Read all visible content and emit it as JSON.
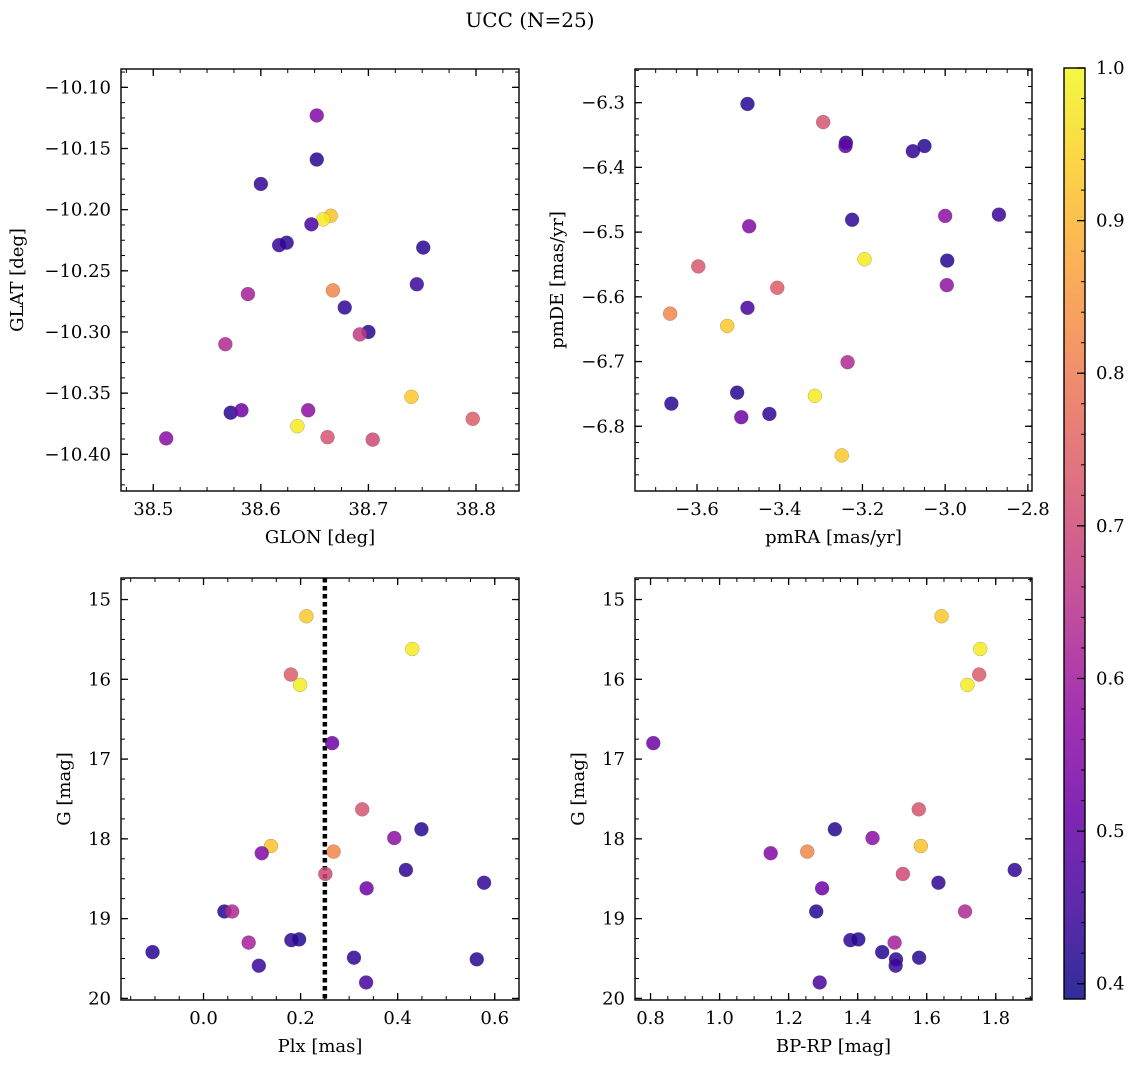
{
  "figure": {
    "suptitle": "UCC (N=25)"
  },
  "colorbar": {
    "colormap": "plasma",
    "vmin": 0.39,
    "vmax": 1.0,
    "ticks": [
      0.4,
      0.5,
      0.6,
      0.7,
      0.8,
      0.9,
      1.0
    ],
    "tick_labels": [
      "0.4",
      "0.5",
      "0.6",
      "0.7",
      "0.8",
      "0.9",
      "1.0"
    ]
  },
  "chart_data": [
    {
      "type": "scatter",
      "xlabel": "GLON [deg]",
      "ylabel": "GLAT [deg]",
      "xlim": [
        38.47,
        38.84
      ],
      "ylim": [
        -10.43,
        -10.085
      ],
      "xticks": [
        38.5,
        38.6,
        38.7,
        38.8
      ],
      "xtick_labels": [
        "38.5",
        "38.6",
        "38.7",
        "38.8"
      ],
      "yticks": [
        -10.1,
        -10.15,
        -10.2,
        -10.25,
        -10.3,
        -10.35,
        -10.4
      ],
      "ytick_labels": [
        "−10.10",
        "−10.15",
        "−10.20",
        "−10.25",
        "−10.30",
        "−10.35",
        "−10.40"
      ],
      "points": [
        {
          "x": 38.652,
          "y": -10.123,
          "c": 0.55
        },
        {
          "x": 38.652,
          "y": -10.159,
          "c": 0.42
        },
        {
          "x": 38.6,
          "y": -10.179,
          "c": 0.43
        },
        {
          "x": 38.665,
          "y": -10.205,
          "c": 0.92
        },
        {
          "x": 38.658,
          "y": -10.208,
          "c": 0.98
        },
        {
          "x": 38.647,
          "y": -10.212,
          "c": 0.46
        },
        {
          "x": 38.617,
          "y": -10.229,
          "c": 0.44
        },
        {
          "x": 38.624,
          "y": -10.227,
          "c": 0.43
        },
        {
          "x": 38.751,
          "y": -10.231,
          "c": 0.42
        },
        {
          "x": 38.745,
          "y": -10.261,
          "c": 0.44
        },
        {
          "x": 38.667,
          "y": -10.266,
          "c": 0.82
        },
        {
          "x": 38.588,
          "y": -10.269,
          "c": 0.61
        },
        {
          "x": 38.678,
          "y": -10.28,
          "c": 0.43
        },
        {
          "x": 38.7,
          "y": -10.3,
          "c": 0.42
        },
        {
          "x": 38.692,
          "y": -10.302,
          "c": 0.67
        },
        {
          "x": 38.567,
          "y": -10.31,
          "c": 0.63
        },
        {
          "x": 38.74,
          "y": -10.353,
          "c": 0.93
        },
        {
          "x": 38.572,
          "y": -10.366,
          "c": 0.42
        },
        {
          "x": 38.582,
          "y": -10.364,
          "c": 0.52
        },
        {
          "x": 38.644,
          "y": -10.364,
          "c": 0.57
        },
        {
          "x": 38.634,
          "y": -10.377,
          "c": 0.98
        },
        {
          "x": 38.662,
          "y": -10.386,
          "c": 0.72
        },
        {
          "x": 38.704,
          "y": -10.388,
          "c": 0.7
        },
        {
          "x": 38.797,
          "y": -10.371,
          "c": 0.74
        },
        {
          "x": 38.512,
          "y": -10.387,
          "c": 0.56
        }
      ]
    },
    {
      "type": "scatter",
      "xlabel": "pmRA [mas/yr]",
      "ylabel": "pmDE [mas/yr]",
      "xlim": [
        -3.75,
        -2.79
      ],
      "ylim": [
        -6.9,
        -6.248
      ],
      "xticks": [
        -3.6,
        -3.4,
        -3.2,
        -3.0,
        -2.8
      ],
      "xtick_labels": [
        "−3.6",
        "−3.4",
        "−3.2",
        "−3.0",
        "−2.8"
      ],
      "yticks": [
        -6.3,
        -6.4,
        -6.5,
        -6.6,
        -6.7,
        -6.8
      ],
      "ytick_labels": [
        "−6.3",
        "−6.4",
        "−6.5",
        "−6.6",
        "−6.7",
        "−6.8"
      ],
      "points": [
        {
          "x": -3.478,
          "y": -6.302,
          "c": 0.42
        },
        {
          "x": -3.295,
          "y": -6.33,
          "c": 0.72
        },
        {
          "x": -3.24,
          "y": -6.362,
          "c": 0.42
        },
        {
          "x": -3.241,
          "y": -6.367,
          "c": 0.5
        },
        {
          "x": -3.078,
          "y": -6.375,
          "c": 0.43
        },
        {
          "x": -3.05,
          "y": -6.367,
          "c": 0.42
        },
        {
          "x": -3.225,
          "y": -6.481,
          "c": 0.43
        },
        {
          "x": -3.0,
          "y": -6.475,
          "c": 0.57
        },
        {
          "x": -2.87,
          "y": -6.473,
          "c": 0.44
        },
        {
          "x": -3.474,
          "y": -6.491,
          "c": 0.55
        },
        {
          "x": -2.995,
          "y": -6.544,
          "c": 0.42
        },
        {
          "x": -3.195,
          "y": -6.542,
          "c": 0.98
        },
        {
          "x": -3.597,
          "y": -6.553,
          "c": 0.73
        },
        {
          "x": -3.406,
          "y": -6.586,
          "c": 0.74
        },
        {
          "x": -2.996,
          "y": -6.582,
          "c": 0.58
        },
        {
          "x": -3.478,
          "y": -6.617,
          "c": 0.46
        },
        {
          "x": -3.665,
          "y": -6.626,
          "c": 0.82
        },
        {
          "x": -3.527,
          "y": -6.645,
          "c": 0.93
        },
        {
          "x": -3.236,
          "y": -6.701,
          "c": 0.63
        },
        {
          "x": -3.503,
          "y": -6.748,
          "c": 0.42
        },
        {
          "x": -3.315,
          "y": -6.753,
          "c": 0.98
        },
        {
          "x": -3.662,
          "y": -6.765,
          "c": 0.42
        },
        {
          "x": -3.425,
          "y": -6.781,
          "c": 0.43
        },
        {
          "x": -3.493,
          "y": -6.786,
          "c": 0.52
        },
        {
          "x": -3.25,
          "y": -6.845,
          "c": 0.93
        }
      ]
    },
    {
      "type": "scatter",
      "xlabel": "Plx [mas]",
      "ylabel": "G [mag]",
      "xlim": [
        -0.17,
        0.65
      ],
      "ylim": [
        20.02,
        14.73
      ],
      "y_inverted": true,
      "xticks": [
        0.0,
        0.2,
        0.4,
        0.6
      ],
      "xtick_labels": [
        "0.0",
        "0.2",
        "0.4",
        "0.6"
      ],
      "yticks": [
        15,
        16,
        17,
        18,
        19,
        20
      ],
      "ytick_labels": [
        "15",
        "16",
        "17",
        "18",
        "19",
        "20"
      ],
      "vline": {
        "x": 0.25,
        "style": "dotted"
      },
      "points": [
        {
          "x": 0.212,
          "y": 15.21,
          "c": 0.93
        },
        {
          "x": 0.43,
          "y": 15.62,
          "c": 0.98
        },
        {
          "x": 0.18,
          "y": 15.94,
          "c": 0.74
        },
        {
          "x": 0.199,
          "y": 16.07,
          "c": 0.98
        },
        {
          "x": 0.265,
          "y": 16.8,
          "c": 0.52
        },
        {
          "x": 0.327,
          "y": 17.63,
          "c": 0.72
        },
        {
          "x": 0.449,
          "y": 17.88,
          "c": 0.42
        },
        {
          "x": 0.393,
          "y": 17.99,
          "c": 0.57
        },
        {
          "x": 0.139,
          "y": 18.09,
          "c": 0.92
        },
        {
          "x": 0.268,
          "y": 18.16,
          "c": 0.82
        },
        {
          "x": 0.12,
          "y": 18.18,
          "c": 0.55
        },
        {
          "x": 0.417,
          "y": 18.39,
          "c": 0.43
        },
        {
          "x": 0.251,
          "y": 18.44,
          "c": 0.7
        },
        {
          "x": 0.578,
          "y": 18.55,
          "c": 0.43
        },
        {
          "x": 0.336,
          "y": 18.62,
          "c": 0.52
        },
        {
          "x": 0.043,
          "y": 18.91,
          "c": 0.42
        },
        {
          "x": 0.059,
          "y": 18.91,
          "c": 0.63
        },
        {
          "x": 0.093,
          "y": 19.3,
          "c": 0.61
        },
        {
          "x": 0.181,
          "y": 19.27,
          "c": 0.43
        },
        {
          "x": 0.197,
          "y": 19.26,
          "c": 0.42
        },
        {
          "x": -0.105,
          "y": 19.42,
          "c": 0.42
        },
        {
          "x": 0.31,
          "y": 19.49,
          "c": 0.43
        },
        {
          "x": 0.563,
          "y": 19.51,
          "c": 0.42
        },
        {
          "x": 0.114,
          "y": 19.59,
          "c": 0.44
        },
        {
          "x": 0.335,
          "y": 19.8,
          "c": 0.46
        }
      ]
    },
    {
      "type": "scatter",
      "xlabel": "BP-RP [mag]",
      "ylabel": "G [mag]",
      "xlim": [
        0.755,
        1.905
      ],
      "ylim": [
        20.02,
        14.73
      ],
      "y_inverted": true,
      "xticks": [
        0.8,
        1.0,
        1.2,
        1.4,
        1.6,
        1.8
      ],
      "xtick_labels": [
        "0.8",
        "1.0",
        "1.2",
        "1.4",
        "1.6",
        "1.8"
      ],
      "yticks": [
        15,
        16,
        17,
        18,
        19,
        20
      ],
      "ytick_labels": [
        "15",
        "16",
        "17",
        "18",
        "19",
        "20"
      ],
      "points": [
        {
          "x": 1.643,
          "y": 15.21,
          "c": 0.93
        },
        {
          "x": 1.755,
          "y": 15.62,
          "c": 0.98
        },
        {
          "x": 1.752,
          "y": 15.94,
          "c": 0.74
        },
        {
          "x": 1.718,
          "y": 16.07,
          "c": 0.98
        },
        {
          "x": 0.808,
          "y": 16.8,
          "c": 0.52
        },
        {
          "x": 1.577,
          "y": 17.63,
          "c": 0.72
        },
        {
          "x": 1.334,
          "y": 17.88,
          "c": 0.42
        },
        {
          "x": 1.443,
          "y": 17.99,
          "c": 0.57
        },
        {
          "x": 1.583,
          "y": 18.09,
          "c": 0.92
        },
        {
          "x": 1.254,
          "y": 18.16,
          "c": 0.82
        },
        {
          "x": 1.148,
          "y": 18.18,
          "c": 0.55
        },
        {
          "x": 1.855,
          "y": 18.39,
          "c": 0.43
        },
        {
          "x": 1.531,
          "y": 18.44,
          "c": 0.7
        },
        {
          "x": 1.634,
          "y": 18.55,
          "c": 0.43
        },
        {
          "x": 1.297,
          "y": 18.62,
          "c": 0.52
        },
        {
          "x": 1.28,
          "y": 18.91,
          "c": 0.42
        },
        {
          "x": 1.711,
          "y": 18.91,
          "c": 0.63
        },
        {
          "x": 1.507,
          "y": 19.3,
          "c": 0.61
        },
        {
          "x": 1.379,
          "y": 19.27,
          "c": 0.43
        },
        {
          "x": 1.402,
          "y": 19.26,
          "c": 0.42
        },
        {
          "x": 1.471,
          "y": 19.42,
          "c": 0.42
        },
        {
          "x": 1.511,
          "y": 19.51,
          "c": 0.43
        },
        {
          "x": 1.578,
          "y": 19.49,
          "c": 0.42
        },
        {
          "x": 1.51,
          "y": 19.59,
          "c": 0.44
        },
        {
          "x": 1.29,
          "y": 19.8,
          "c": 0.46
        }
      ]
    }
  ]
}
